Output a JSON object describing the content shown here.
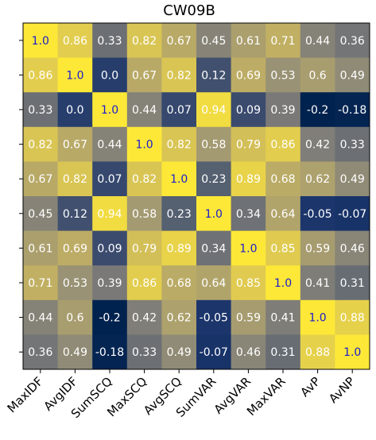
{
  "chart_data": {
    "type": "heatmap",
    "title": "CW09B",
    "x_labels": [
      "MaxIDF",
      "AvgIDF",
      "SumSCQ",
      "MaxSCQ",
      "AvgSCQ",
      "SumVAR",
      "AvgVAR",
      "MaxVAR",
      "AvP",
      "AvNP"
    ],
    "y_labels": [
      "MaxIDF",
      "AvgIDF",
      "SumSCQ",
      "MaxSCQ",
      "AvgSCQ",
      "SumVAR",
      "AvgVAR",
      "MaxVAR",
      "AvP",
      "AvNP"
    ],
    "value_labels": [
      [
        "1.0",
        "0.86",
        "0.33",
        "0.82",
        "0.67",
        "0.45",
        "0.61",
        "0.71",
        "0.44",
        "0.36"
      ],
      [
        "0.86",
        "1.0",
        "0.0",
        "0.67",
        "0.82",
        "0.12",
        "0.69",
        "0.53",
        "0.6",
        "0.49"
      ],
      [
        "0.33",
        "0.0",
        "1.0",
        "0.44",
        "0.07",
        "0.94",
        "0.09",
        "0.39",
        "-0.2",
        "-0.18"
      ],
      [
        "0.82",
        "0.67",
        "0.44",
        "1.0",
        "0.82",
        "0.58",
        "0.79",
        "0.86",
        "0.42",
        "0.33"
      ],
      [
        "0.67",
        "0.82",
        "0.07",
        "0.82",
        "1.0",
        "0.23",
        "0.89",
        "0.68",
        "0.62",
        "0.49"
      ],
      [
        "0.45",
        "0.12",
        "0.94",
        "0.58",
        "0.23",
        "1.0",
        "0.34",
        "0.64",
        "-0.05",
        "-0.07"
      ],
      [
        "0.61",
        "0.69",
        "0.09",
        "0.79",
        "0.89",
        "0.34",
        "1.0",
        "0.85",
        "0.59",
        "0.46"
      ],
      [
        "0.71",
        "0.53",
        "0.39",
        "0.86",
        "0.68",
        "0.64",
        "0.85",
        "1.0",
        "0.41",
        "0.31"
      ],
      [
        "0.44",
        "0.6",
        "-0.2",
        "0.42",
        "0.62",
        "-0.05",
        "0.59",
        "0.41",
        "1.0",
        "0.88"
      ],
      [
        "0.36",
        "0.49",
        "-0.18",
        "0.33",
        "0.49",
        "-0.07",
        "0.46",
        "0.31",
        "0.88",
        "1.0"
      ]
    ],
    "colormap": "cividis",
    "color_range": [
      -0.2,
      1.0
    ],
    "grid": false,
    "legend": "none"
  }
}
